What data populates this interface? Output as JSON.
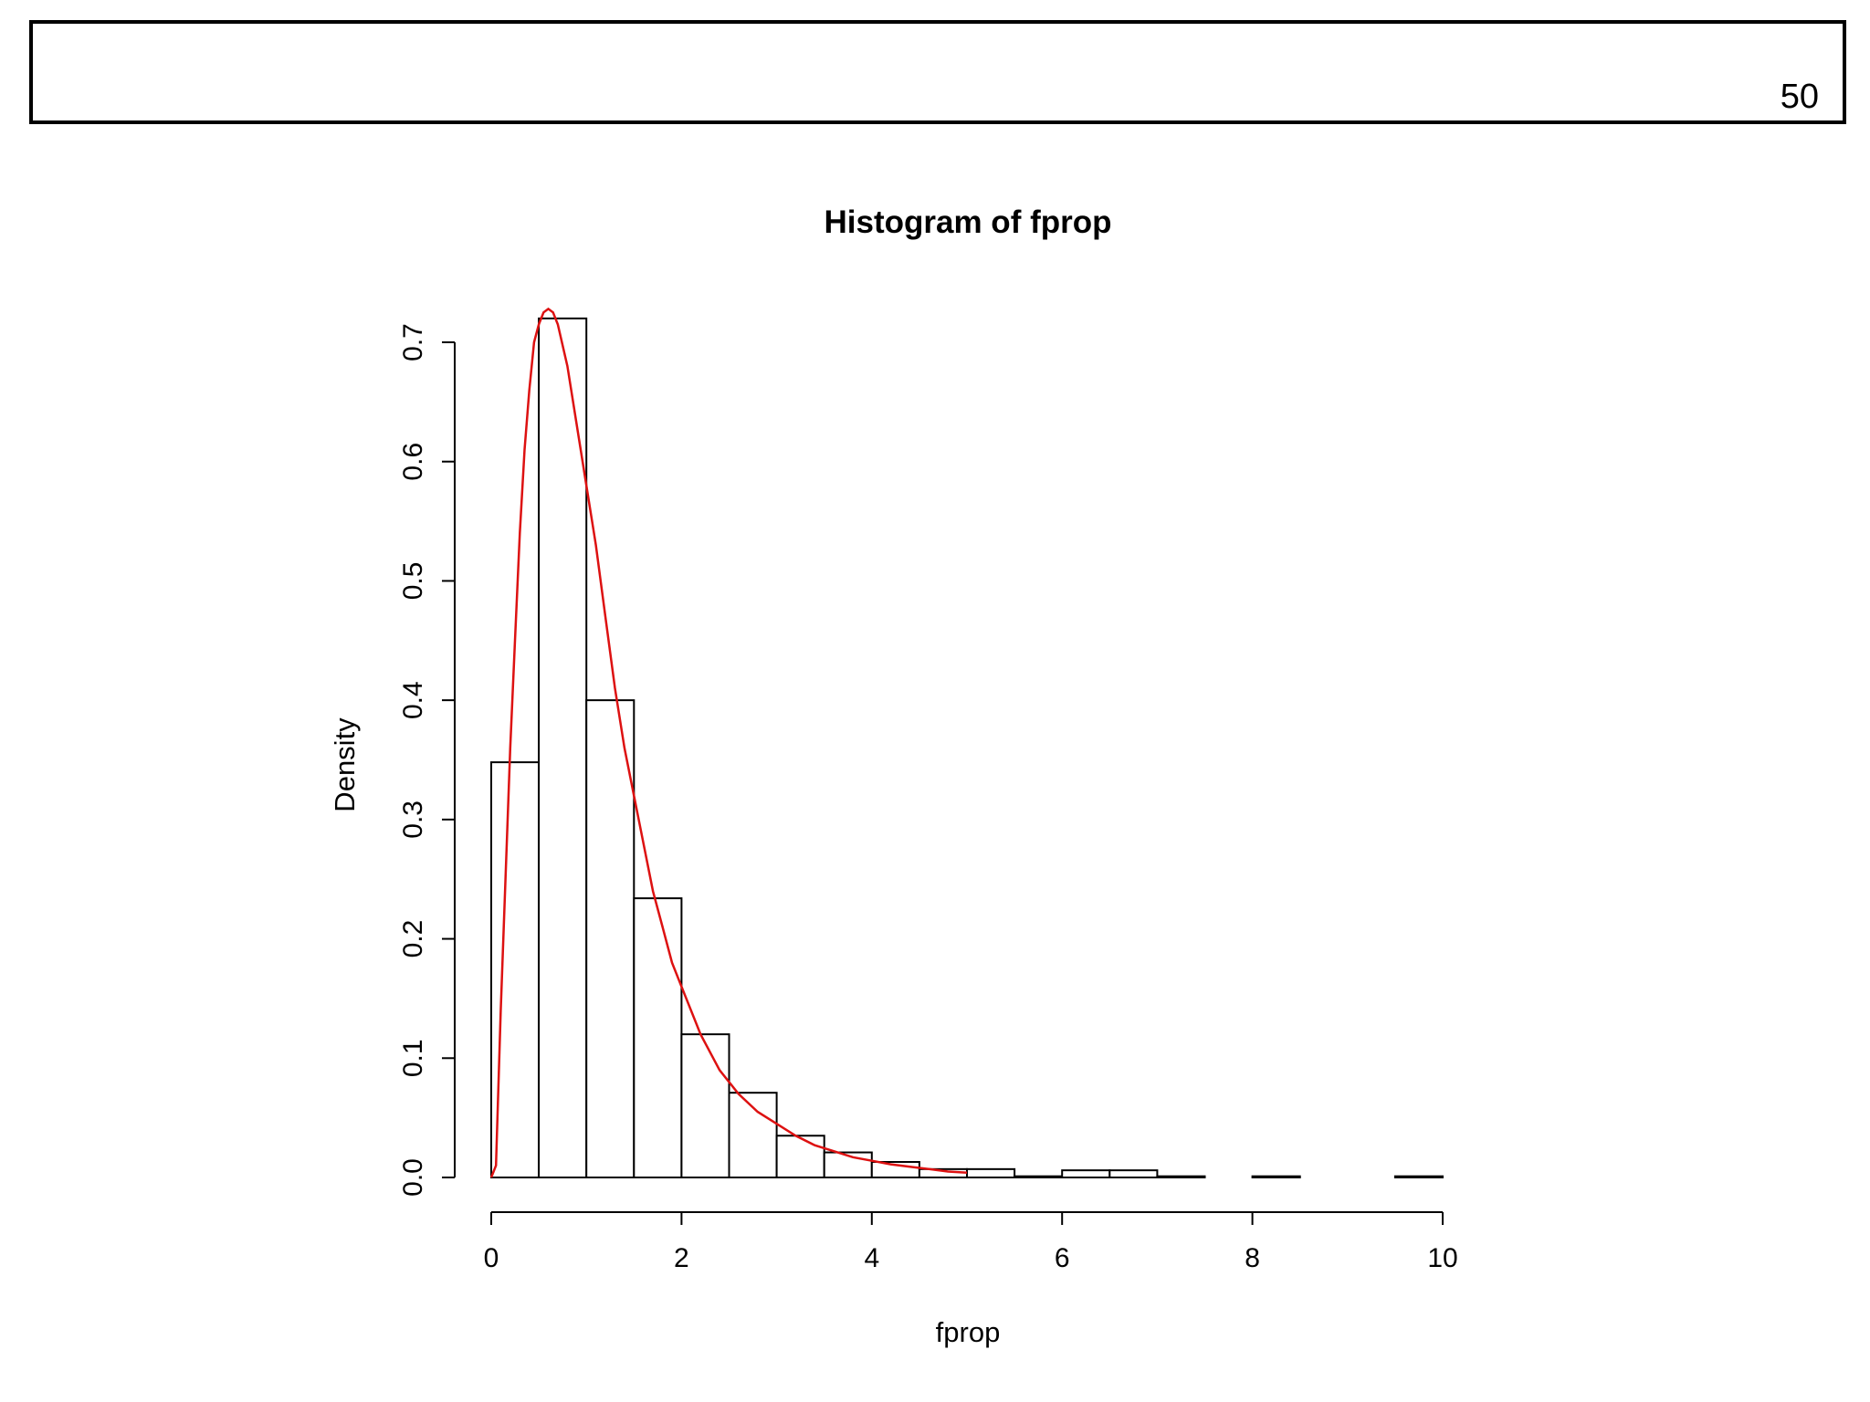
{
  "header": {
    "page_number": "50"
  },
  "chart_data": {
    "type": "bar",
    "title": "Histogram of fprop",
    "xlabel": "fprop",
    "ylabel": "Density",
    "xlim": [
      0,
      10
    ],
    "ylim": [
      0,
      0.7
    ],
    "x_ticks": [
      "0",
      "2",
      "4",
      "6",
      "8",
      "10"
    ],
    "y_ticks": [
      "0.0",
      "0.1",
      "0.2",
      "0.3",
      "0.4",
      "0.5",
      "0.6",
      "0.7"
    ],
    "bin_edges": [
      0,
      0.5,
      1,
      1.5,
      2,
      2.5,
      3,
      3.5,
      4,
      4.5,
      5,
      5.5,
      6,
      6.5,
      7,
      7.5,
      8,
      8.5,
      9,
      9.5,
      10
    ],
    "values": [
      0.348,
      0.72,
      0.4,
      0.234,
      0.12,
      0.071,
      0.035,
      0.021,
      0.013,
      0.007,
      0.007,
      0.001,
      0.006,
      0.006,
      0.001,
      0.0,
      0.001,
      0.0,
      0.0,
      0.001
    ],
    "bar_fill": "#ffffff",
    "bar_stroke": "#000000",
    "density_curve": {
      "color": "#dd1111",
      "x": [
        0,
        0.05,
        0.1,
        0.15,
        0.2,
        0.25,
        0.3,
        0.35,
        0.4,
        0.45,
        0.5,
        0.55,
        0.6,
        0.65,
        0.7,
        0.8,
        0.9,
        1.0,
        1.1,
        1.2,
        1.3,
        1.4,
        1.5,
        1.6,
        1.7,
        1.8,
        1.9,
        2.0,
        2.2,
        2.4,
        2.6,
        2.8,
        3.0,
        3.2,
        3.4,
        3.6,
        3.8,
        4.0,
        4.2,
        4.4,
        4.6,
        4.8,
        5.0
      ],
      "y": [
        0.0,
        0.01,
        0.14,
        0.25,
        0.36,
        0.45,
        0.54,
        0.61,
        0.66,
        0.7,
        0.715,
        0.725,
        0.728,
        0.725,
        0.715,
        0.68,
        0.63,
        0.58,
        0.53,
        0.47,
        0.41,
        0.36,
        0.32,
        0.28,
        0.24,
        0.21,
        0.18,
        0.16,
        0.12,
        0.09,
        0.07,
        0.055,
        0.045,
        0.035,
        0.027,
        0.022,
        0.017,
        0.014,
        0.011,
        0.009,
        0.007,
        0.005,
        0.004
      ]
    }
  }
}
